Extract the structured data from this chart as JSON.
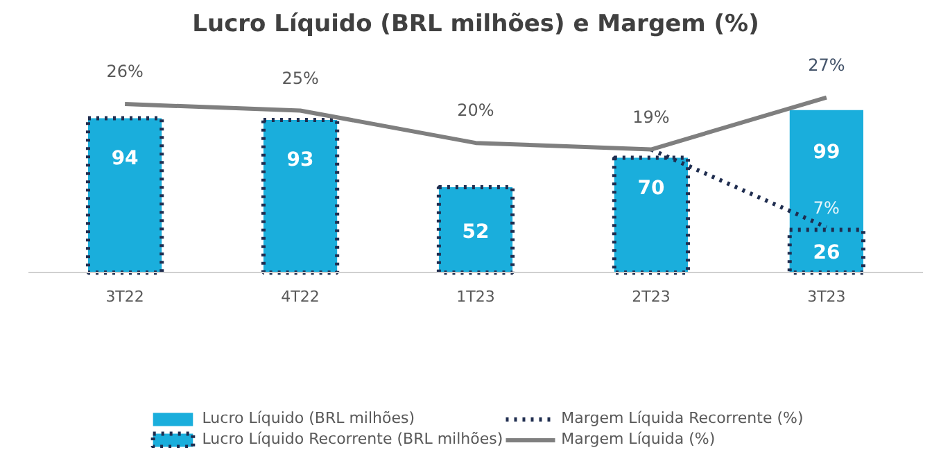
{
  "chart_data": {
    "type": "bar",
    "title": "Lucro Líquido (BRL milhões) e Margem (%)",
    "tick_labels": "x",
    "categories": [
      "3T22",
      "4T22",
      "1T23",
      "2T23",
      "3T23"
    ],
    "series": [
      {
        "name": "Lucro Líquido (BRL milhões)",
        "color": "#1aaedc",
        "values": [
          null,
          null,
          null,
          null,
          99
        ],
        "value_labels": [
          null,
          null,
          null,
          null,
          "99"
        ]
      },
      {
        "name": "Lucro Líquido Recorrente (BRL milhões)",
        "color": "#1aaedc",
        "line_style": "dotted",
        "values": [
          94,
          93,
          52,
          70,
          26
        ],
        "value_labels": [
          "94",
          "93",
          "52",
          "70",
          "26"
        ]
      },
      {
        "name": "Margem Líquida Recorrente (%)",
        "type": "line",
        "axis": "y2",
        "color": "#1f2d4f",
        "line_style": "dotted",
        "values": [
          null,
          null,
          null,
          19,
          7
        ],
        "value_labels": [
          null,
          null,
          null,
          null,
          "7%"
        ]
      },
      {
        "name": "Margem Líquida (%)",
        "type": "line",
        "axis": "y2",
        "color": "#7f7f7f",
        "line_style": "solid",
        "values": [
          26,
          25,
          20,
          19,
          27
        ],
        "value_labels": [
          "26%",
          "25%",
          "20%",
          "19%",
          "27%"
        ]
      }
    ],
    "legend": "bottom"
  }
}
